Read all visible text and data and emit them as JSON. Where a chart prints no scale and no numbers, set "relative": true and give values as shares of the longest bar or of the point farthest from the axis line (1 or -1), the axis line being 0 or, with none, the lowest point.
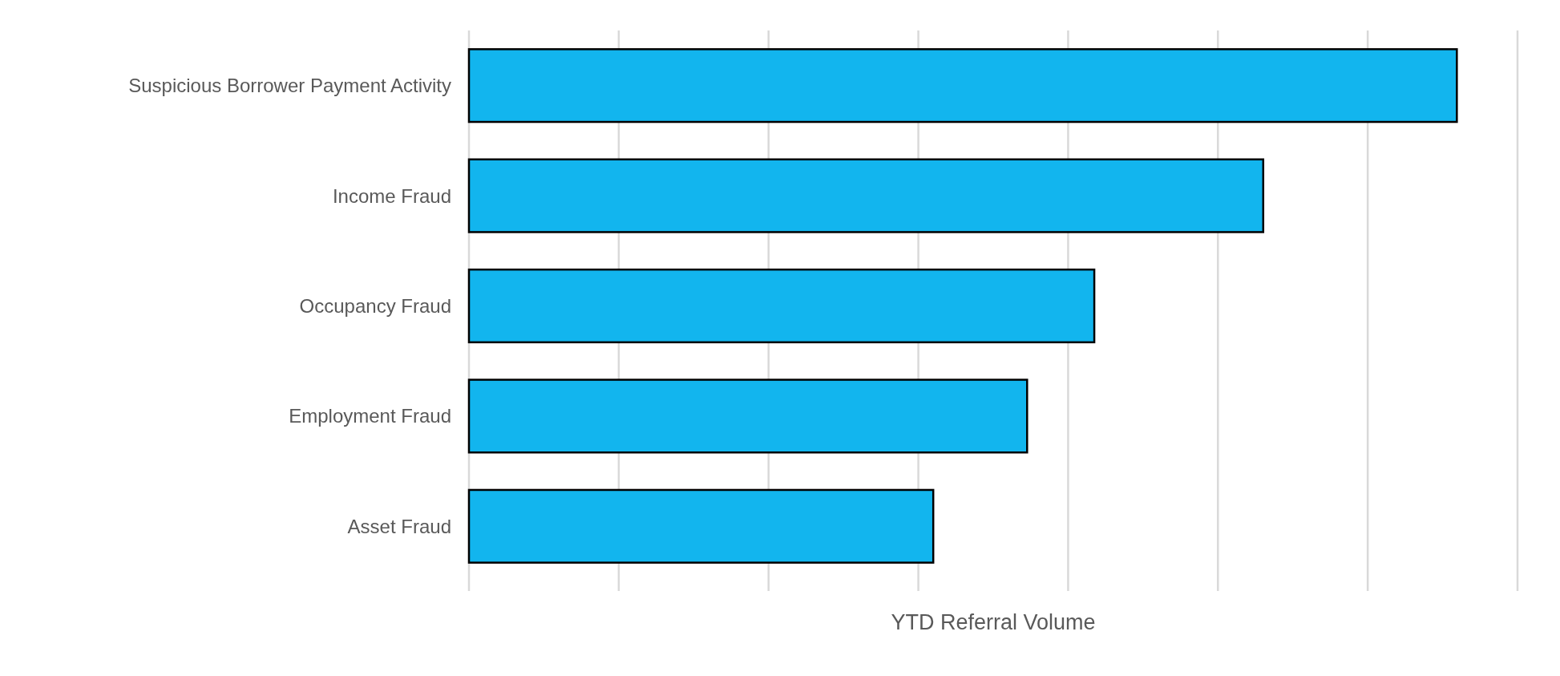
{
  "chart_data": {
    "type": "bar",
    "orientation": "horizontal",
    "relative": true,
    "xlabel": "YTD Referral Volume",
    "categories": [
      "Suspicious Borrower Payment Activity",
      "Income Fraud",
      "Occupancy Fraud",
      "Employment Fraud",
      "Asset Fraud"
    ],
    "values": [
      1,
      0.804,
      0.633,
      0.565,
      0.47
    ],
    "color": "#12b5ee",
    "grid": "x"
  }
}
